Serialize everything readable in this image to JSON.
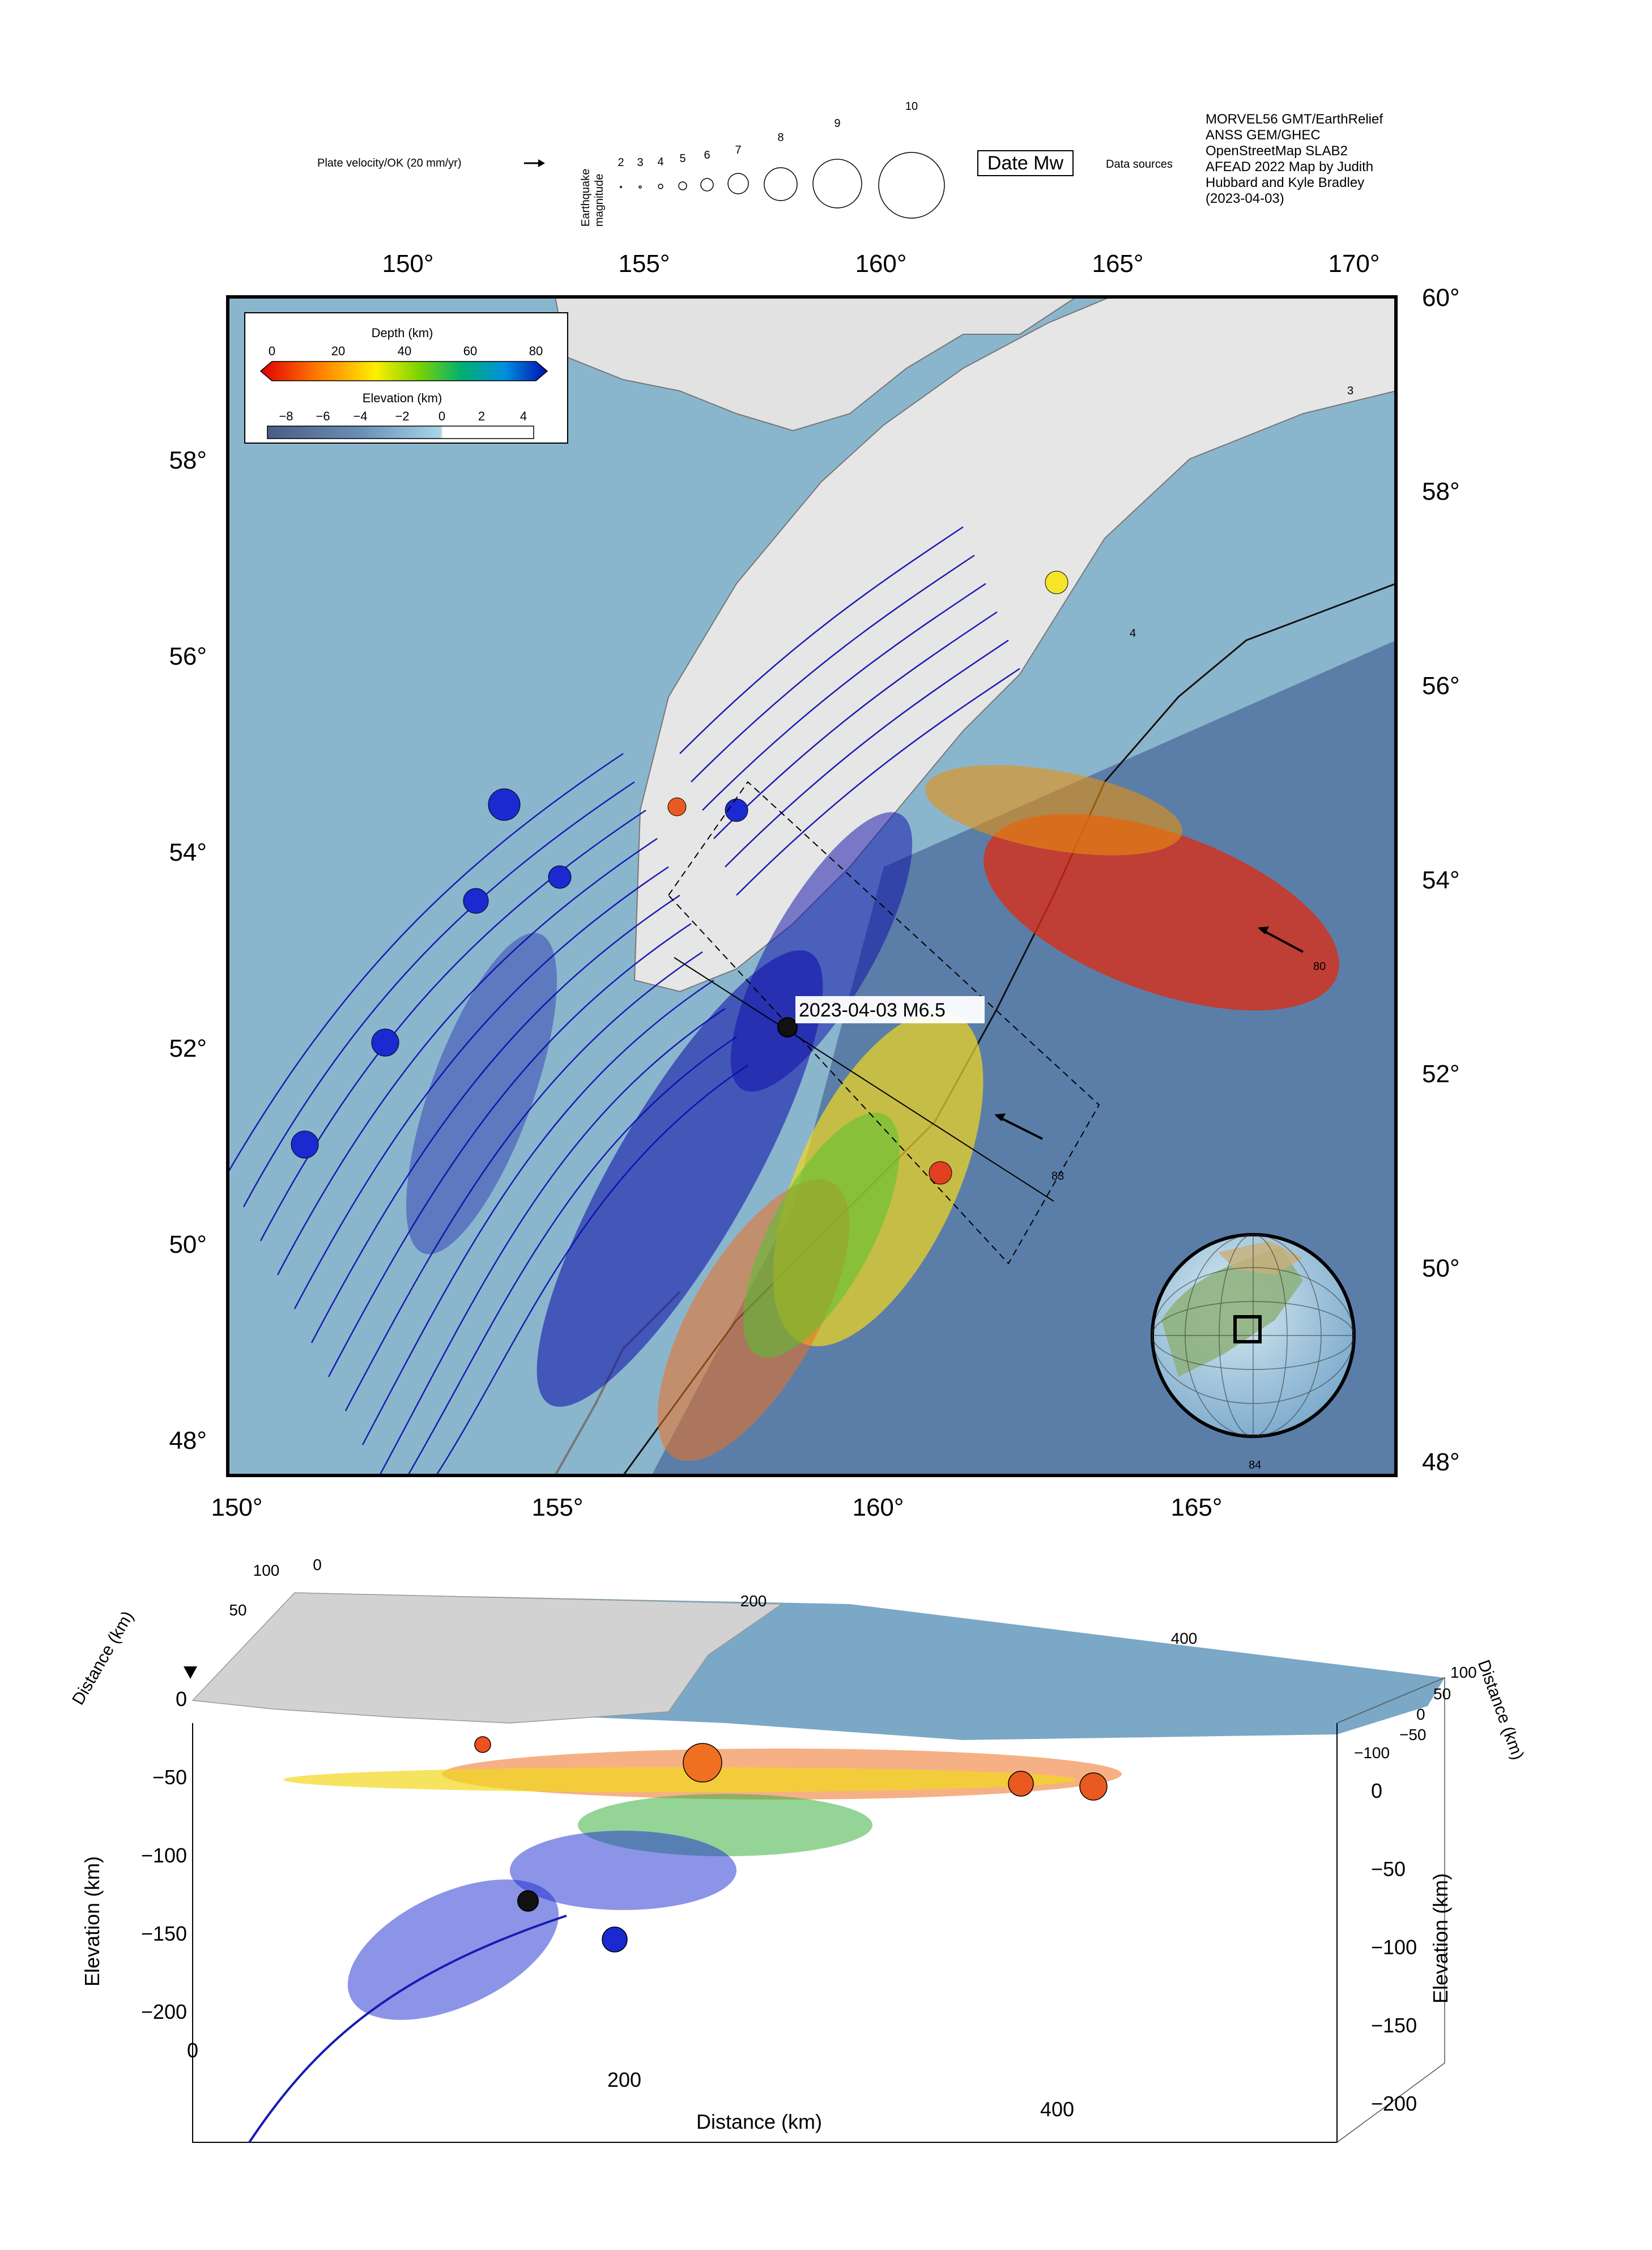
{
  "legend": {
    "plate_velocity_label": "Plate velocity/OK (20 mm/yr)",
    "magnitude_axis_label": [
      "Earthquake",
      "magnitude"
    ],
    "magnitudes": [
      "2",
      "3",
      "4",
      "5",
      "6",
      "7",
      "8",
      "9",
      "10"
    ],
    "date_box_label": "Date Mw",
    "data_sources_label": "Data sources",
    "data_sources_text": [
      "MORVEL56 GMT/EarthRelief",
      "ANSS GEM/GHEC",
      "OpenStreetMap SLAB2",
      "AFEAD 2022 Map by Judith",
      "Hubbard and Kyle Bradley",
      "(2023-04-03)"
    ]
  },
  "map": {
    "top_lon_ticks": [
      "150°",
      "155°",
      "160°",
      "165°",
      "170°"
    ],
    "bottom_lon_ticks": [
      "150°",
      "155°",
      "160°",
      "165°"
    ],
    "left_lat_ticks": [
      "58°",
      "56°",
      "54°",
      "52°",
      "50°",
      "48°"
    ],
    "right_lat_ticks": [
      "60°",
      "58°",
      "56°",
      "54°",
      "52°",
      "50°",
      "48°"
    ],
    "event_label": "2023-04-03 M6.5",
    "trench_labels": [
      "3",
      "4"
    ],
    "velocity_labels": [
      "80",
      "83",
      "84"
    ],
    "depth_scale": {
      "title": "Depth (km)",
      "ticks": [
        "0",
        "20",
        "40",
        "60",
        "80"
      ]
    },
    "elevation_scale": {
      "title": "Elevation (km)",
      "ticks": [
        "−8",
        "−6",
        "−4",
        "−2",
        "0",
        "2",
        "4"
      ]
    },
    "colors": {
      "ocean": "#7fb0c9",
      "land": "#e6e6e6",
      "slab": "#1a1ab3",
      "shallow": "#e01010",
      "deep": "#0a0aa8"
    }
  },
  "profile": {
    "left_elev_ticks": [
      "0",
      "−50",
      "−100",
      "−150",
      "−200"
    ],
    "right_elev_ticks": [
      "0",
      "−50",
      "−100",
      "−150",
      "−200"
    ],
    "distance_ticks": [
      "0",
      "200",
      "400"
    ],
    "top_distance_ticks": [
      "100",
      "50",
      "0",
      "200",
      "400"
    ],
    "right_distance_ticks": [
      "100",
      "50",
      "0",
      "−50",
      "−100"
    ],
    "left_elev_title": "Elevation (km)",
    "right_elev_title": "Elevation (km)",
    "distance_title": "Distance (km)",
    "left_dist_title": "Distance (km)",
    "right_dist_title": "Distance (km)"
  }
}
